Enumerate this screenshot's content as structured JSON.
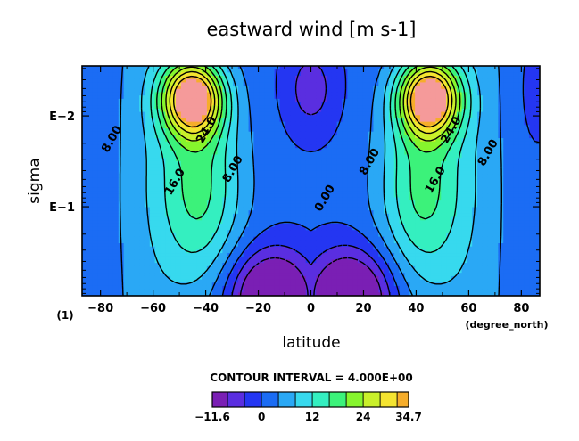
{
  "chart_data": {
    "type": "heatmap",
    "title": "eastward wind [m s-1]",
    "xlabel": "latitude",
    "ylabel": "sigma",
    "x_unit": "(degree_north)",
    "y_corner_label": "(1)",
    "xlim": [
      -87,
      87
    ],
    "ylim_log10": [
      -2.55,
      -0.02
    ],
    "x_ticks": [
      -80,
      -60,
      -40,
      -20,
      0,
      20,
      40,
      60,
      80
    ],
    "x_tick_labels": [
      "−80",
      "−60",
      "−40",
      "−20",
      "0",
      "20",
      "40",
      "60",
      "80"
    ],
    "y_ticks": [
      -2,
      -1
    ],
    "y_tick_labels": [
      "E−2",
      "E−1"
    ],
    "y_axis_scale": "log",
    "grid": false,
    "contour_interval_text": "CONTOUR INTERVAL = 4.000E+00",
    "contour_labels": [
      {
        "text": "8.00",
        "lat": -76,
        "lsig": -1.75
      },
      {
        "text": "16.0",
        "lat": -52,
        "lsig": -1.28
      },
      {
        "text": "24.0",
        "lat": -40,
        "lsig": -1.85
      },
      {
        "text": "8.00",
        "lat": -30,
        "lsig": -1.42
      },
      {
        "text": "0.00",
        "lat": 5,
        "lsig": -1.1
      },
      {
        "text": "8.00",
        "lat": 22,
        "lsig": -1.5
      },
      {
        "text": "24.0",
        "lat": 53,
        "lsig": -1.85
      },
      {
        "text": "16.0",
        "lat": 47,
        "lsig": -1.3
      },
      {
        "text": "8.00",
        "lat": 67,
        "lsig": -1.6
      }
    ],
    "jets": [
      {
        "name": "southern jet",
        "lat": -45,
        "lsig": -2.2,
        "max": 34.7
      },
      {
        "name": "northern jet",
        "lat": 45,
        "lsig": -2.2,
        "max": 34.7
      }
    ],
    "colorbar": {
      "min": -11.6,
      "max": 34.7,
      "interval": 4,
      "tick_values": [
        -11.6,
        0,
        12,
        24,
        34.7
      ],
      "tick_labels": [
        "−11.6",
        "0",
        "12",
        "24",
        "34.7"
      ],
      "colors": [
        "#7a1fb4",
        "#5a2ee0",
        "#2436f2",
        "#1b6cf4",
        "#2aa8f5",
        "#37d9ee",
        "#34efc0",
        "#3cf27a",
        "#86f52d",
        "#c9f02a",
        "#f4e430",
        "#f6ad2a",
        "#f0672a",
        "#e3302a",
        "#f59a9a"
      ]
    }
  }
}
